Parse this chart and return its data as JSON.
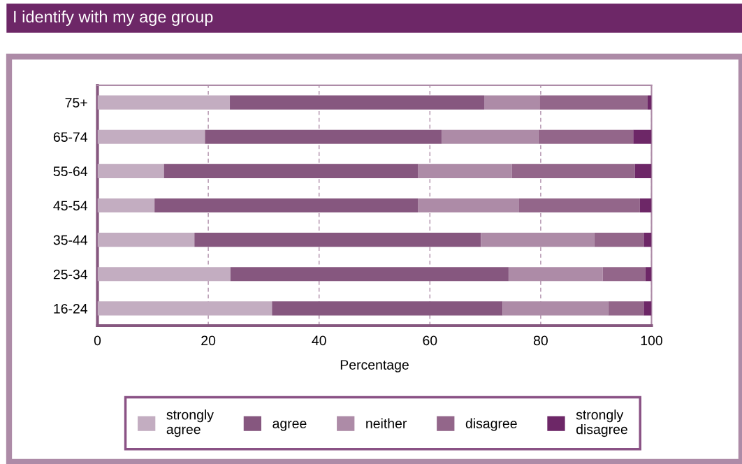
{
  "chart_data": {
    "type": "bar",
    "title": "I identify with my age group",
    "orientation": "horizontal",
    "stacked": true,
    "categories": [
      "75+",
      "65-74",
      "55-64",
      "45-54",
      "35-44",
      "25-34",
      "16-24"
    ],
    "series": [
      {
        "name": "strongly agree",
        "color": "#c3adc1",
        "values": [
          23.9,
          19.4,
          12.0,
          10.3,
          17.5,
          24.0,
          31.5
        ]
      },
      {
        "name": "agree",
        "color": "#86577f",
        "values": [
          45.9,
          42.7,
          45.9,
          47.6,
          51.7,
          50.2,
          41.6
        ]
      },
      {
        "name": "neither",
        "color": "#ad8ba7",
        "values": [
          10.0,
          17.5,
          16.9,
          18.2,
          20.5,
          17.0,
          19.1
        ]
      },
      {
        "name": "disagree",
        "color": "#93668a",
        "values": [
          19.5,
          17.1,
          22.2,
          21.8,
          8.9,
          7.7,
          6.4
        ]
      },
      {
        "name": "strongly disagree",
        "color": "#6d2767",
        "values": [
          0.7,
          3.3,
          3.0,
          2.1,
          1.4,
          1.1,
          1.4
        ]
      }
    ],
    "xlabel": "Percentage",
    "xlim": [
      0,
      100
    ],
    "xticks": [
      0,
      20,
      40,
      60,
      80,
      100
    ],
    "grid": "x",
    "legend": "bottom"
  }
}
